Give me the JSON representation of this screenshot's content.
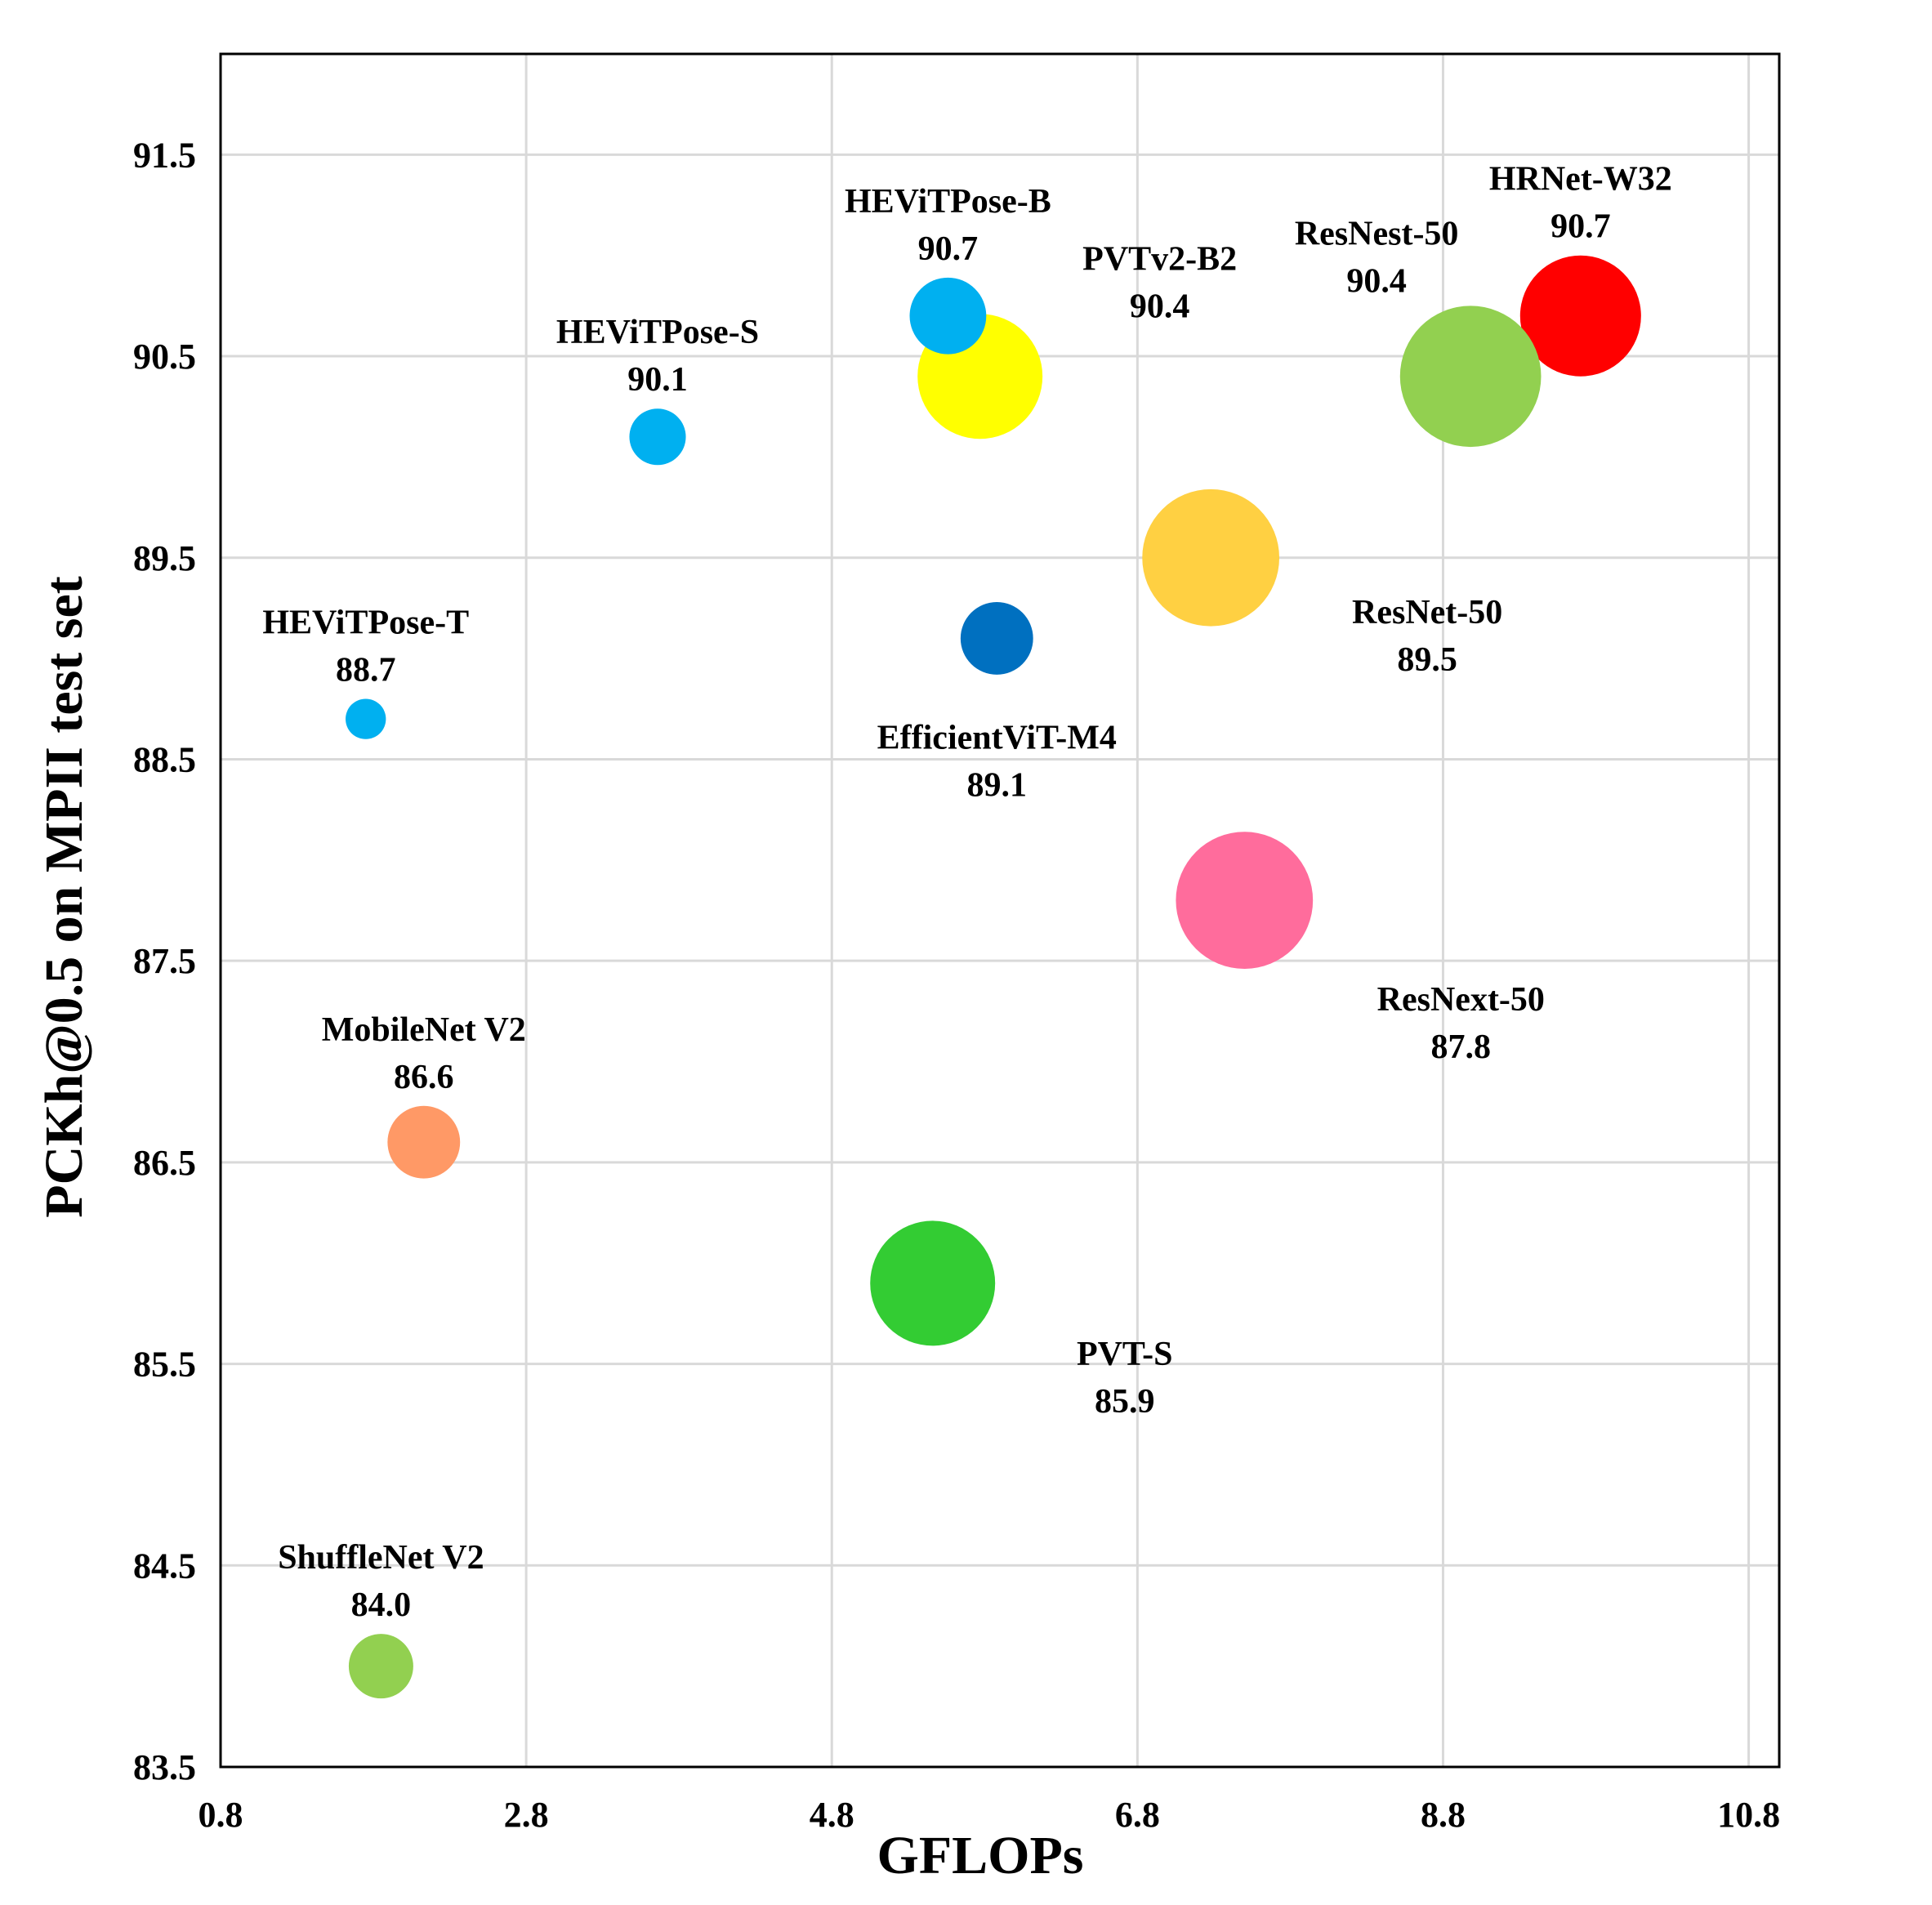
{
  "chart_data": {
    "type": "scatter",
    "variant": "bubble",
    "xlabel": "GFLOPs",
    "ylabel": "PCKh@0.5 on MPII test set",
    "xlim": [
      0.8,
      11.0
    ],
    "ylim": [
      83.5,
      92.0
    ],
    "xticks": [
      "0.8",
      "2.8",
      "4.8",
      "6.8",
      "8.8",
      "10.8"
    ],
    "yticks": [
      "83.5",
      "84.5",
      "85.5",
      "86.5",
      "87.5",
      "88.5",
      "89.5",
      "90.5",
      "91.5"
    ],
    "grid": true,
    "legend": "none",
    "points": [
      {
        "name": "HRNet-W32",
        "value_label": "90.7",
        "x": 9.7,
        "y": 90.7,
        "size": 0.3,
        "color": "#ff0000",
        "label_pos": "above"
      },
      {
        "name": "ResNest-50",
        "value_label": "90.4",
        "x": 8.98,
        "y": 90.4,
        "size": 0.35,
        "color": "#92d050",
        "label_pos": "above-left"
      },
      {
        "name": "PVTv2-B2",
        "value_label": "90.4",
        "x": 5.77,
        "y": 90.4,
        "size": 0.31,
        "color": "#ffff00",
        "label_pos": "right"
      },
      {
        "name": "HEViTPose-B",
        "value_label": "90.7",
        "x": 5.56,
        "y": 90.7,
        "size": 0.19,
        "color": "#00b0f0",
        "label_pos": "above"
      },
      {
        "name": "HEViTPose-S",
        "value_label": "90.1",
        "x": 3.66,
        "y": 90.1,
        "size": 0.14,
        "color": "#00b0f0",
        "label_pos": "above"
      },
      {
        "name": "ResNet-50",
        "value_label": "89.5",
        "x": 7.28,
        "y": 89.5,
        "size": 0.34,
        "color": "#ffd042",
        "label_pos": "below-right"
      },
      {
        "name": "EfficientViT-M4",
        "value_label": "89.1",
        "x": 5.88,
        "y": 89.1,
        "size": 0.18,
        "color": "#0070c0",
        "label_pos": "below"
      },
      {
        "name": "HEViTPose-T",
        "value_label": "88.7",
        "x": 1.75,
        "y": 88.7,
        "size": 0.1,
        "color": "#00b0f0",
        "label_pos": "above"
      },
      {
        "name": "ResNext-50",
        "value_label": "87.8",
        "x": 7.5,
        "y": 87.8,
        "size": 0.34,
        "color": "#ff6c9c",
        "label_pos": "below-right"
      },
      {
        "name": "MobileNet V2",
        "value_label": "86.6",
        "x": 2.13,
        "y": 86.6,
        "size": 0.18,
        "color": "#ff9966",
        "label_pos": "above"
      },
      {
        "name": "PVT-S",
        "value_label": "85.9",
        "x": 5.46,
        "y": 85.9,
        "size": 0.31,
        "color": "#33cc33",
        "label_pos": "below-right"
      },
      {
        "name": "ShuffleNet V2",
        "value_label": "84.0",
        "x": 1.85,
        "y": 84.0,
        "size": 0.16,
        "color": "#92d050",
        "label_pos": "above"
      }
    ]
  }
}
